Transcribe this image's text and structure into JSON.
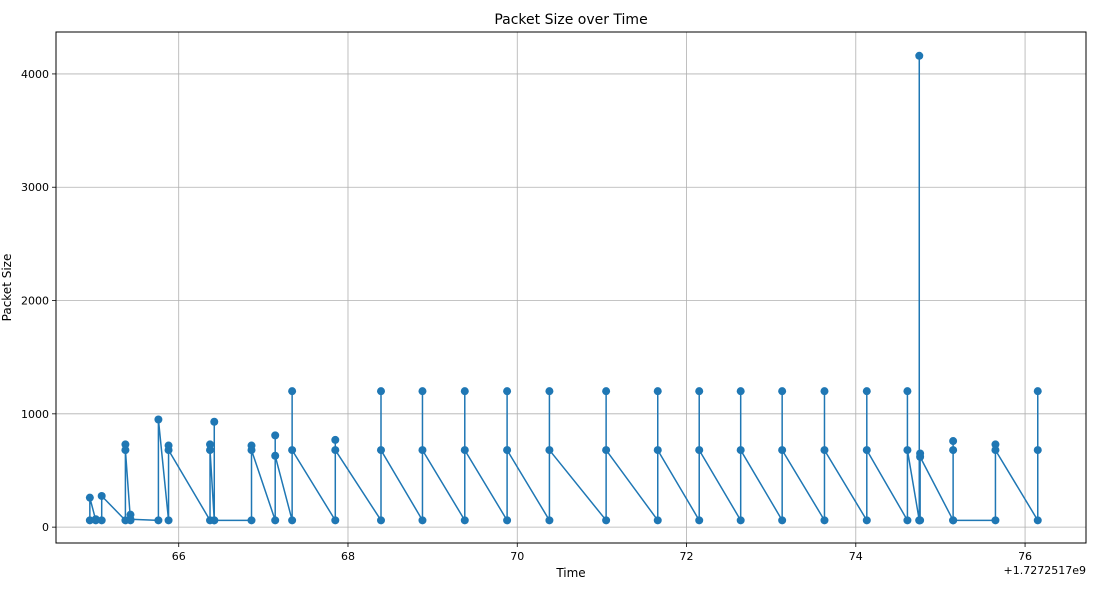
{
  "chart_data": {
    "type": "line",
    "title": "Packet Size over Time",
    "xlabel": "Time",
    "ylabel": "Packet Size",
    "x_offset_label": "+1.7272517e9",
    "xlim": [
      64.55,
      76.72
    ],
    "ylim": [
      -140,
      4370
    ],
    "x_ticks": [
      66,
      68,
      70,
      72,
      74,
      76
    ],
    "x_tick_labels": [
      "66",
      "68",
      "70",
      "72",
      "74",
      "76"
    ],
    "y_ticks": [
      0,
      1000,
      2000,
      3000,
      4000
    ],
    "y_tick_labels": [
      "0",
      "1000",
      "2000",
      "3000",
      "4000"
    ],
    "grid": true,
    "color": "#1f77b4",
    "series": [
      {
        "marker": "circle",
        "x": [
          64.95,
          64.95,
          65.02,
          65.02,
          65.09,
          65.09,
          65.37,
          65.37,
          65.37,
          65.43,
          65.43,
          65.43,
          65.76,
          65.76,
          65.88,
          65.88,
          65.88,
          66.37,
          66.37,
          66.37,
          66.42,
          66.42,
          66.42,
          66.86,
          66.86,
          66.86,
          67.14,
          67.14,
          67.14,
          67.34,
          67.34,
          67.34,
          67.85,
          67.85,
          67.85,
          68.39,
          68.39,
          68.39,
          68.88,
          68.88,
          68.88,
          69.38,
          69.38,
          69.38,
          69.88,
          69.88,
          69.88,
          70.38,
          70.38,
          70.38,
          71.05,
          71.05,
          71.05,
          71.66,
          71.66,
          71.66,
          72.15,
          72.15,
          72.15,
          72.64,
          72.64,
          72.64,
          73.13,
          73.13,
          73.13,
          73.63,
          73.63,
          73.63,
          74.13,
          74.13,
          74.13,
          74.61,
          74.61,
          74.61,
          74.75,
          74.75,
          74.75,
          74.76,
          74.76,
          74.76,
          75.15,
          75.15,
          75.15,
          75.15,
          75.65,
          75.65,
          75.65,
          76.15,
          76.15,
          76.15
        ],
        "y": [
          60,
          260,
          60,
          70,
          60,
          275,
          60,
          730,
          680,
          60,
          110,
          70,
          60,
          950,
          60,
          720,
          680,
          60,
          730,
          680,
          60,
          930,
          60,
          60,
          720,
          680,
          60,
          810,
          630,
          60,
          1200,
          680,
          60,
          770,
          680,
          60,
          1200,
          680,
          60,
          1200,
          680,
          60,
          1200,
          680,
          60,
          1200,
          680,
          60,
          1200,
          680,
          60,
          1200,
          680,
          60,
          1200,
          680,
          60,
          1200,
          680,
          60,
          1200,
          680,
          60,
          1200,
          680,
          60,
          1200,
          680,
          60,
          1200,
          680,
          60,
          1200,
          680,
          60,
          4160,
          60,
          60,
          650,
          620,
          60,
          760,
          680,
          60,
          60,
          730,
          680,
          60,
          1200,
          680
        ]
      }
    ]
  }
}
